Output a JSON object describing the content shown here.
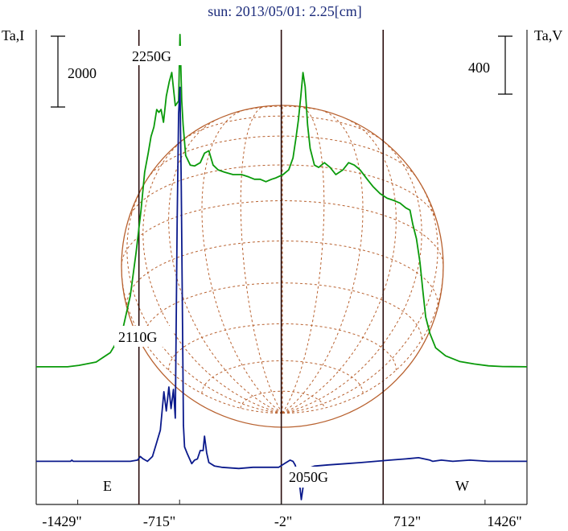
{
  "chart_data": {
    "type": "line",
    "title": "sun: 2013/05/01: 2.25[cm]",
    "ylabel_left": "Ta,I",
    "ylabel_right": "Ta,V",
    "xlim": [
      -1720,
      1720
    ],
    "x_ticks": [
      {
        "value": -1429,
        "label": "-1429\""
      },
      {
        "value": -715,
        "label": "-715\""
      },
      {
        "value": -2,
        "label": "-2\""
      },
      {
        "value": 712,
        "label": "712\""
      },
      {
        "value": 1426,
        "label": "1426\""
      }
    ],
    "scale_bars": [
      {
        "side": "left",
        "label": "2000"
      },
      {
        "side": "right",
        "label": "400"
      }
    ],
    "limb_labels": {
      "east": "E",
      "west": "W"
    },
    "vertical_lines_x": [
      -1000,
      -2,
      712
    ],
    "annotations": [
      {
        "text": "2250G",
        "x": -715
      },
      {
        "text": "2110G",
        "x": -785
      },
      {
        "text": "2050G",
        "x": 140
      }
    ],
    "series": [
      {
        "name": "I",
        "color": "#0a9a0a",
        "ylim": [
          -2900,
          7100
        ],
        "points": [
          [
            -1720,
            0
          ],
          [
            -1500,
            0
          ],
          [
            -1420,
            30
          ],
          [
            -1300,
            100
          ],
          [
            -1200,
            300
          ],
          [
            -1120,
            700
          ],
          [
            -1060,
            1500
          ],
          [
            -1020,
            2400
          ],
          [
            -985,
            3300
          ],
          [
            -960,
            4100
          ],
          [
            -935,
            4500
          ],
          [
            -915,
            4850
          ],
          [
            -895,
            5050
          ],
          [
            -875,
            5420
          ],
          [
            -860,
            5360
          ],
          [
            -845,
            5420
          ],
          [
            -828,
            5150
          ],
          [
            -808,
            5700
          ],
          [
            -788,
            6000
          ],
          [
            -770,
            6200
          ],
          [
            -745,
            5500
          ],
          [
            -722,
            5600
          ],
          [
            -712,
            7000
          ],
          [
            -700,
            5600
          ],
          [
            -690,
            5100
          ],
          [
            -672,
            4450
          ],
          [
            -640,
            4250
          ],
          [
            -610,
            4230
          ],
          [
            -570,
            4300
          ],
          [
            -540,
            4500
          ],
          [
            -510,
            4550
          ],
          [
            -480,
            4250
          ],
          [
            -445,
            4150
          ],
          [
            -400,
            4100
          ],
          [
            -340,
            4050
          ],
          [
            -280,
            4050
          ],
          [
            -230,
            4000
          ],
          [
            -190,
            3950
          ],
          [
            -150,
            3950
          ],
          [
            -110,
            3900
          ],
          [
            -70,
            3950
          ],
          [
            -40,
            3980
          ],
          [
            10,
            4050
          ],
          [
            50,
            4150
          ],
          [
            80,
            4400
          ],
          [
            100,
            4800
          ],
          [
            118,
            5200
          ],
          [
            135,
            5700
          ],
          [
            150,
            6200
          ],
          [
            165,
            5900
          ],
          [
            182,
            5100
          ],
          [
            200,
            4600
          ],
          [
            230,
            4250
          ],
          [
            260,
            4200
          ],
          [
            300,
            4300
          ],
          [
            340,
            4200
          ],
          [
            380,
            4050
          ],
          [
            430,
            4150
          ],
          [
            470,
            4300
          ],
          [
            510,
            4250
          ],
          [
            550,
            4150
          ],
          [
            600,
            3950
          ],
          [
            640,
            3800
          ],
          [
            690,
            3650
          ],
          [
            740,
            3550
          ],
          [
            790,
            3500
          ],
          [
            830,
            3450
          ],
          [
            870,
            3350
          ],
          [
            900,
            3300
          ],
          [
            920,
            3000
          ],
          [
            945,
            2700
          ],
          [
            970,
            2200
          ],
          [
            990,
            1600
          ],
          [
            1010,
            1050
          ],
          [
            1040,
            700
          ],
          [
            1080,
            400
          ],
          [
            1150,
            230
          ],
          [
            1250,
            110
          ],
          [
            1350,
            60
          ],
          [
            1450,
            20
          ],
          [
            1550,
            5
          ],
          [
            1720,
            0
          ]
        ]
      },
      {
        "name": "V",
        "color": "#0b1a8c",
        "ylim": [
          -180,
          1800
        ],
        "points": [
          [
            -1720,
            0
          ],
          [
            -1600,
            0
          ],
          [
            -1480,
            0
          ],
          [
            -1470,
            5
          ],
          [
            -1460,
            0
          ],
          [
            -1300,
            0
          ],
          [
            -1150,
            0
          ],
          [
            -1060,
            0
          ],
          [
            -1010,
            5
          ],
          [
            -990,
            20
          ],
          [
            -970,
            10
          ],
          [
            -940,
            0
          ],
          [
            -905,
            20
          ],
          [
            -880,
            70
          ],
          [
            -850,
            130
          ],
          [
            -825,
            290
          ],
          [
            -808,
            210
          ],
          [
            -790,
            310
          ],
          [
            -775,
            220
          ],
          [
            -758,
            300
          ],
          [
            -745,
            180
          ],
          [
            -732,
            1000
          ],
          [
            -722,
            1450
          ],
          [
            -712,
            1560
          ],
          [
            -703,
            1150
          ],
          [
            -695,
            600
          ],
          [
            -688,
            150
          ],
          [
            -680,
            60
          ],
          [
            -660,
            30
          ],
          [
            -630,
            -10
          ],
          [
            -610,
            5
          ],
          [
            -590,
            10
          ],
          [
            -570,
            45
          ],
          [
            -550,
            45
          ],
          [
            -540,
            105
          ],
          [
            -525,
            35
          ],
          [
            -510,
            -5
          ],
          [
            -470,
            -20
          ],
          [
            -420,
            -25
          ],
          [
            -300,
            -30
          ],
          [
            -200,
            -25
          ],
          [
            -100,
            -25
          ],
          [
            -20,
            -25
          ],
          [
            20,
            -10
          ],
          [
            60,
            5
          ],
          [
            80,
            0
          ],
          [
            95,
            -15
          ],
          [
            110,
            -45
          ],
          [
            125,
            -90
          ],
          [
            138,
            -160
          ],
          [
            148,
            -120
          ],
          [
            160,
            -60
          ],
          [
            180,
            -30
          ],
          [
            230,
            -20
          ],
          [
            330,
            -15
          ],
          [
            450,
            -10
          ],
          [
            560,
            -5
          ],
          [
            660,
            0
          ],
          [
            760,
            5
          ],
          [
            870,
            10
          ],
          [
            960,
            15
          ],
          [
            1000,
            10
          ],
          [
            1040,
            5
          ],
          [
            1060,
            0
          ],
          [
            1120,
            5
          ],
          [
            1200,
            0
          ],
          [
            1320,
            5
          ],
          [
            1450,
            0
          ],
          [
            1600,
            0
          ],
          [
            1720,
            0
          ]
        ]
      }
    ],
    "grid_color": "#b8612f",
    "colors": {
      "axes": "#222222",
      "vertical_lines": "#2a0c0c",
      "title": "#1a2a7a"
    }
  }
}
